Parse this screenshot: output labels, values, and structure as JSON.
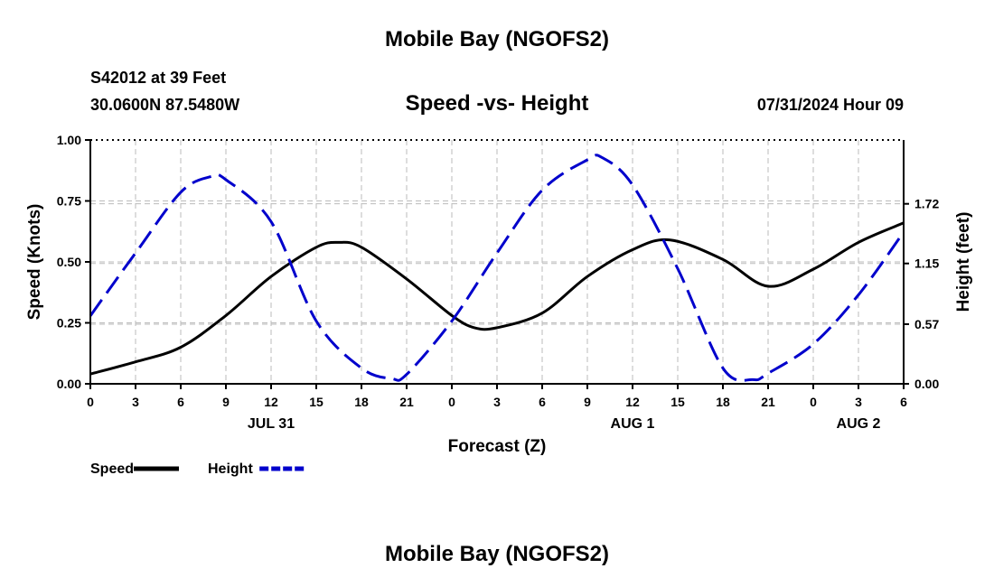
{
  "header": {
    "title": "Mobile Bay (NGOFS2)",
    "station": "S42012 at 39 Feet",
    "coords": "30.0600N  87.5480W",
    "chart_title": "Speed -vs- Height",
    "run_time": "07/31/2024 Hour 09"
  },
  "footer": {
    "title": "Mobile Bay (NGOFS2)"
  },
  "colors": {
    "speed": "#000000",
    "height": "#0000cc",
    "grid": "#bbbbbb"
  },
  "chart_data": {
    "type": "line",
    "title": "Speed -vs- Height",
    "xlabel": "Forecast (Z)",
    "ylabel_left": "Speed (Knots)",
    "ylabel_right": "Height (feet)",
    "x_unit": "hours",
    "x_range": [
      0,
      54
    ],
    "x_ticks": [
      0,
      3,
      6,
      9,
      12,
      15,
      18,
      21,
      24,
      27,
      30,
      33,
      36,
      39,
      42,
      45,
      48,
      51,
      54
    ],
    "x_tick_labels": [
      "0",
      "3",
      "6",
      "9",
      "12",
      "15",
      "18",
      "21",
      "0",
      "3",
      "6",
      "9",
      "12",
      "15",
      "18",
      "21",
      "0",
      "3",
      "6"
    ],
    "date_labels": [
      {
        "x": 12,
        "label": "JUL 31"
      },
      {
        "x": 36,
        "label": "AUG 1"
      },
      {
        "x": 51,
        "label": "AUG 2"
      }
    ],
    "ylim_left": [
      0,
      1
    ],
    "y_ticks_left": [
      0,
      0.25,
      0.5,
      0.75,
      1.0
    ],
    "y_tick_labels_left": [
      "0.00",
      "0.25",
      "0.50",
      "0.75",
      "1.00"
    ],
    "ylim_right": [
      0,
      2.33
    ],
    "y_ticks_right": [
      0,
      0.57,
      1.15,
      1.72
    ],
    "y_tick_labels_right": [
      "0.00",
      "0.57",
      "1.15",
      "1.72"
    ],
    "grid": true,
    "legend_position": "bottom-left",
    "series": [
      {
        "name": "Speed",
        "axis": "left",
        "style": "solid",
        "x": [
          0,
          3,
          6,
          9,
          12,
          15,
          16.5,
          18,
          21,
          24,
          25.5,
          27,
          30,
          33,
          36,
          38.5,
          42,
          45,
          48,
          51,
          54
        ],
        "values": [
          0.04,
          0.09,
          0.15,
          0.28,
          0.44,
          0.56,
          0.58,
          0.56,
          0.43,
          0.28,
          0.23,
          0.23,
          0.29,
          0.44,
          0.55,
          0.59,
          0.51,
          0.4,
          0.47,
          0.58,
          0.66
        ]
      },
      {
        "name": "Height",
        "axis": "right",
        "style": "dashed",
        "x": [
          0,
          3,
          6,
          8,
          9,
          12,
          15,
          18,
          20,
          21,
          24,
          27,
          30,
          33,
          34,
          36,
          39,
          42,
          44,
          45,
          48,
          51,
          54
        ],
        "values": [
          0.65,
          1.25,
          1.83,
          1.98,
          1.95,
          1.55,
          0.6,
          0.15,
          0.05,
          0.09,
          0.6,
          1.25,
          1.85,
          2.14,
          2.16,
          1.9,
          1.1,
          0.15,
          0.04,
          0.1,
          0.38,
          0.85,
          1.45
        ]
      }
    ]
  }
}
